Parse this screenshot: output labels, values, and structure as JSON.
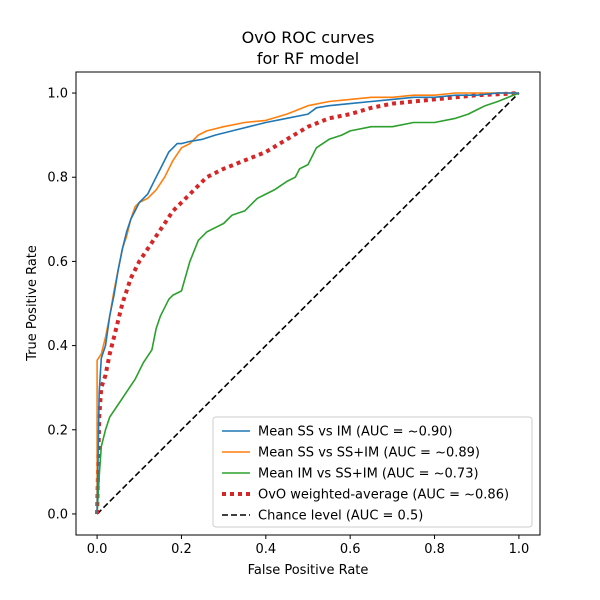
{
  "chart_data": {
    "type": "line",
    "title": [
      "OvO ROC curves",
      "for RF model"
    ],
    "xlabel": "False Positive Rate",
    "ylabel": "True Positive Rate",
    "xlim": [
      -0.05,
      1.05
    ],
    "ylim": [
      -0.05,
      1.05
    ],
    "xticks": [
      "0.0",
      "0.2",
      "0.4",
      "0.6",
      "0.8",
      "1.0"
    ],
    "yticks": [
      "0.0",
      "0.2",
      "0.4",
      "0.6",
      "0.8",
      "1.0"
    ],
    "grid": false,
    "legend_position": "lower-right",
    "series": [
      {
        "name": "Mean SS vs IM (AUC = ~0.90)",
        "color": "#1f77b4",
        "style": "solid",
        "x": [
          0.0,
          0.005,
          0.01,
          0.02,
          0.03,
          0.04,
          0.05,
          0.06,
          0.07,
          0.08,
          0.09,
          0.1,
          0.11,
          0.12,
          0.13,
          0.14,
          0.15,
          0.16,
          0.17,
          0.18,
          0.19,
          0.2,
          0.22,
          0.25,
          0.28,
          0.32,
          0.36,
          0.4,
          0.45,
          0.5,
          0.52,
          0.55,
          0.6,
          0.65,
          0.7,
          0.75,
          0.8,
          0.85,
          0.9,
          0.95,
          0.98,
          1.0
        ],
        "y": [
          0.0,
          0.29,
          0.37,
          0.4,
          0.47,
          0.52,
          0.58,
          0.63,
          0.67,
          0.7,
          0.72,
          0.74,
          0.75,
          0.76,
          0.78,
          0.8,
          0.82,
          0.84,
          0.86,
          0.87,
          0.88,
          0.88,
          0.885,
          0.89,
          0.9,
          0.91,
          0.92,
          0.93,
          0.94,
          0.95,
          0.965,
          0.97,
          0.975,
          0.98,
          0.985,
          0.99,
          0.99,
          0.995,
          0.995,
          1.0,
          1.0,
          1.0
        ]
      },
      {
        "name": "Mean SS vs SS+IM (AUC = ~0.89)",
        "color": "#ff7f0e",
        "style": "solid",
        "x": [
          0.0,
          0.0,
          0.01,
          0.02,
          0.03,
          0.04,
          0.05,
          0.06,
          0.07,
          0.08,
          0.09,
          0.1,
          0.12,
          0.14,
          0.16,
          0.18,
          0.2,
          0.22,
          0.24,
          0.26,
          0.3,
          0.35,
          0.4,
          0.45,
          0.5,
          0.55,
          0.6,
          0.65,
          0.7,
          0.75,
          0.8,
          0.85,
          0.9,
          0.95,
          1.0
        ],
        "y": [
          0.0,
          0.365,
          0.38,
          0.42,
          0.47,
          0.53,
          0.58,
          0.63,
          0.66,
          0.7,
          0.73,
          0.74,
          0.75,
          0.77,
          0.8,
          0.84,
          0.87,
          0.88,
          0.9,
          0.91,
          0.92,
          0.93,
          0.935,
          0.95,
          0.97,
          0.98,
          0.985,
          0.99,
          0.99,
          0.995,
          0.995,
          1.0,
          1.0,
          1.0,
          1.0
        ]
      },
      {
        "name": "Mean IM vs SS+IM (AUC = ~0.73)",
        "color": "#2ca02c",
        "style": "solid",
        "x": [
          0.0,
          0.005,
          0.01,
          0.02,
          0.03,
          0.05,
          0.07,
          0.09,
          0.11,
          0.13,
          0.14,
          0.15,
          0.16,
          0.17,
          0.18,
          0.2,
          0.22,
          0.24,
          0.26,
          0.28,
          0.3,
          0.32,
          0.35,
          0.38,
          0.4,
          0.42,
          0.45,
          0.47,
          0.48,
          0.5,
          0.52,
          0.55,
          0.58,
          0.6,
          0.65,
          0.7,
          0.75,
          0.8,
          0.85,
          0.88,
          0.9,
          0.92,
          0.95,
          1.0
        ],
        "y": [
          0.0,
          0.09,
          0.16,
          0.2,
          0.23,
          0.26,
          0.29,
          0.32,
          0.36,
          0.39,
          0.44,
          0.47,
          0.49,
          0.51,
          0.52,
          0.53,
          0.6,
          0.65,
          0.67,
          0.68,
          0.69,
          0.71,
          0.72,
          0.75,
          0.76,
          0.77,
          0.79,
          0.8,
          0.82,
          0.83,
          0.87,
          0.89,
          0.9,
          0.91,
          0.92,
          0.92,
          0.93,
          0.93,
          0.94,
          0.95,
          0.96,
          0.97,
          0.98,
          1.0
        ]
      },
      {
        "name": "OvO weighted-average (AUC = ~0.86)",
        "color": "#d62728",
        "style": "dotted",
        "x": [
          0.0,
          0.005,
          0.01,
          0.02,
          0.03,
          0.04,
          0.05,
          0.06,
          0.07,
          0.08,
          0.09,
          0.1,
          0.12,
          0.14,
          0.16,
          0.18,
          0.2,
          0.22,
          0.24,
          0.26,
          0.28,
          0.3,
          0.35,
          0.4,
          0.45,
          0.5,
          0.55,
          0.6,
          0.65,
          0.7,
          0.75,
          0.8,
          0.85,
          0.9,
          0.95,
          1.0
        ],
        "y": [
          0.0,
          0.23,
          0.3,
          0.33,
          0.38,
          0.42,
          0.46,
          0.5,
          0.53,
          0.56,
          0.58,
          0.6,
          0.63,
          0.66,
          0.69,
          0.72,
          0.74,
          0.76,
          0.78,
          0.8,
          0.81,
          0.82,
          0.84,
          0.86,
          0.89,
          0.92,
          0.94,
          0.95,
          0.965,
          0.975,
          0.98,
          0.985,
          0.99,
          0.995,
          0.997,
          1.0
        ]
      },
      {
        "name": "Chance level (AUC = 0.5)",
        "color": "#000000",
        "style": "dashed",
        "x": [
          0.0,
          1.0
        ],
        "y": [
          0.0,
          1.0
        ]
      }
    ]
  }
}
